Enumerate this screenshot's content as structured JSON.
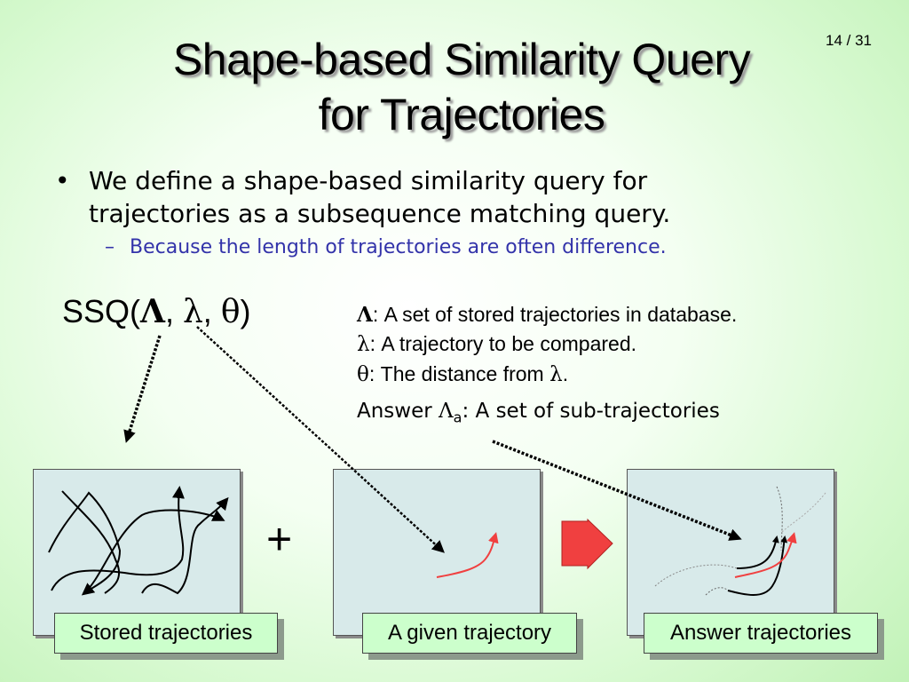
{
  "title": {
    "line1": "Shape-based Similarity Query",
    "line2": "for Trajectories"
  },
  "slide_number": "14 / 31",
  "bullet": {
    "marker": "•",
    "line1": "We define a shape-based similarity query for",
    "line2": "trajectories as a subsequence matching query."
  },
  "sub_bullet": {
    "marker": "–",
    "text": "Because the length of trajectories are often difference."
  },
  "ssq": {
    "prefix": "SSQ(",
    "Lambda": "Λ",
    "sep1": ", ",
    "lambda": "λ",
    "sep2": ", ",
    "theta": "θ",
    "suffix": ")"
  },
  "definitions": [
    {
      "symbol": "Λ",
      "text": ": A set of stored trajectories in database."
    },
    {
      "symbol": "λ",
      "text": ": A trajectory to be compared."
    },
    {
      "symbol": "θ",
      "text": ": The distance from ",
      "symbol2": "λ",
      "end": "."
    }
  ],
  "answer": {
    "prefix": "Answer ",
    "symbol": "Λ",
    "subscript": "a",
    "text": ": A set of sub-trajectories"
  },
  "panels": [
    {
      "label": "Stored trajectories"
    },
    {
      "label": "A given trajectory"
    },
    {
      "label": "Answer trajectories"
    }
  ],
  "plus_sign": "+",
  "colors": {
    "panel": "#d8eaea",
    "label": "#ccffcc",
    "accent_red": "#f04040",
    "sub_bullet": "#3333aa"
  }
}
